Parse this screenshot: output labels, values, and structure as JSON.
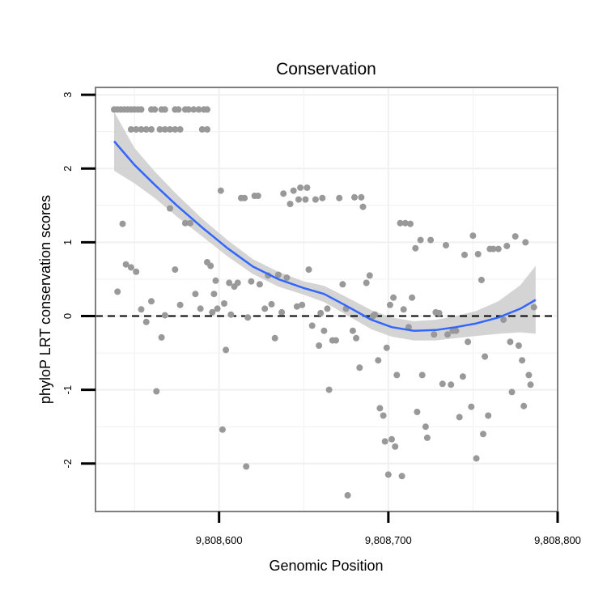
{
  "chart_data": {
    "type": "scatter",
    "title": "Conservation",
    "xlabel": "Genomic Position",
    "ylabel": "phyloP LRT conservation scores",
    "xlim": [
      9808527,
      9808800
    ],
    "ylim": [
      -2.65,
      3.1
    ],
    "x_ticks": [
      9808600,
      9808700,
      9808800
    ],
    "x_tick_labels": [
      "9,808,600",
      "9,808,700",
      "9,808,800"
    ],
    "y_ticks": [
      -2,
      -1,
      0,
      1,
      2,
      3
    ],
    "y_tick_labels": [
      "-2",
      "-1",
      "0",
      "1",
      "2",
      "3"
    ],
    "grid": true,
    "reference_line": {
      "y": 0,
      "style": "dashed",
      "color": "#000000"
    },
    "colors": {
      "points": "#999999",
      "smooth": "#3366ff",
      "band": "#cccccc",
      "grid": "#f0f0f0",
      "panel_border": "#7f7f7f"
    },
    "series": [
      {
        "type": "scatter",
        "points": [
          [
            9808538,
            2.8
          ],
          [
            9808540,
            2.8
          ],
          [
            9808542,
            2.8
          ],
          [
            9808544,
            2.8
          ],
          [
            9808546,
            2.8
          ],
          [
            9808548,
            2.8
          ],
          [
            9808550,
            2.8
          ],
          [
            9808552,
            2.8
          ],
          [
            9808554,
            2.8
          ],
          [
            9808548,
            2.53
          ],
          [
            9808551,
            2.53
          ],
          [
            9808554,
            2.53
          ],
          [
            9808557,
            2.53
          ],
          [
            9808560,
            2.53
          ],
          [
            9808560,
            2.8
          ],
          [
            9808562,
            2.8
          ],
          [
            9808566,
            2.8
          ],
          [
            9808568,
            2.8
          ],
          [
            9808574,
            2.8
          ],
          [
            9808576,
            2.8
          ],
          [
            9808580,
            2.8
          ],
          [
            9808582,
            2.8
          ],
          [
            9808585,
            2.8
          ],
          [
            9808588,
            2.8
          ],
          [
            9808591,
            2.8
          ],
          [
            9808593,
            2.8
          ],
          [
            9808565,
            2.53
          ],
          [
            9808568,
            2.53
          ],
          [
            9808571,
            2.53
          ],
          [
            9808574,
            2.53
          ],
          [
            9808577,
            2.53
          ],
          [
            9808590,
            2.53
          ],
          [
            9808593,
            2.53
          ],
          [
            9808540,
            0.33
          ],
          [
            9808543,
            1.25
          ],
          [
            9808545,
            0.7
          ],
          [
            9808548,
            0.66
          ],
          [
            9808551,
            0.6
          ],
          [
            9808554,
            0.09
          ],
          [
            9808557,
            -0.08
          ],
          [
            9808560,
            0.2
          ],
          [
            9808563,
            -1.02
          ],
          [
            9808566,
            -0.29
          ],
          [
            9808568,
            0.01
          ],
          [
            9808571,
            1.46
          ],
          [
            9808574,
            0.63
          ],
          [
            9808577,
            0.15
          ],
          [
            9808580,
            1.26
          ],
          [
            9808583,
            1.26
          ],
          [
            9808586,
            0.3
          ],
          [
            9808589,
            0.1
          ],
          [
            9808593,
            0.73
          ],
          [
            9808595,
            0.68
          ],
          [
            9808596,
            0.05
          ],
          [
            9808597,
            0.3
          ],
          [
            9808598,
            0.48
          ],
          [
            9808599,
            0.1
          ],
          [
            9808601,
            1.7
          ],
          [
            9808603,
            0.17
          ],
          [
            9808604,
            -0.46
          ],
          [
            9808606,
            0.45
          ],
          [
            9808607,
            0.02
          ],
          [
            9808609,
            0.4
          ],
          [
            9808611,
            0.45
          ],
          [
            9808613,
            1.6
          ],
          [
            9808615,
            1.6
          ],
          [
            9808617,
            -0.02
          ],
          [
            9808619,
            0.47
          ],
          [
            9808621,
            1.63
          ],
          [
            9808623,
            1.63
          ],
          [
            9808602,
            -1.54
          ],
          [
            9808616,
            -2.04
          ],
          [
            9808624,
            0.43
          ],
          [
            9808627,
            0.1
          ],
          [
            9808629,
            0.55
          ],
          [
            9808631,
            0.16
          ],
          [
            9808633,
            -0.3
          ],
          [
            9808635,
            0.56
          ],
          [
            9808637,
            0.05
          ],
          [
            9808638,
            1.66
          ],
          [
            9808640,
            0.52
          ],
          [
            9808642,
            1.52
          ],
          [
            9808644,
            1.7
          ],
          [
            9808646,
            0.13
          ],
          [
            9808647,
            1.58
          ],
          [
            9808648,
            1.74
          ],
          [
            9808649,
            0.15
          ],
          [
            9808651,
            1.58
          ],
          [
            9808652,
            1.74
          ],
          [
            9808653,
            0.63
          ],
          [
            9808655,
            -0.13
          ],
          [
            9808657,
            1.58
          ],
          [
            9808659,
            -0.4
          ],
          [
            9808660,
            0.04
          ],
          [
            9808661,
            1.6
          ],
          [
            9808662,
            -0.2
          ],
          [
            9808664,
            0.1
          ],
          [
            9808665,
            -1.0
          ],
          [
            9808667,
            -0.33
          ],
          [
            9808669,
            -0.33
          ],
          [
            9808671,
            1.6
          ],
          [
            9808673,
            0.43
          ],
          [
            9808675,
            0.1
          ],
          [
            9808676,
            -2.43
          ],
          [
            9808679,
            -0.2
          ],
          [
            9808680,
            1.61
          ],
          [
            9808681,
            -0.3
          ],
          [
            9808683,
            -0.7
          ],
          [
            9808684,
            1.61
          ],
          [
            9808685,
            1.48
          ],
          [
            9808687,
            0.45
          ],
          [
            9808689,
            0.55
          ],
          [
            9808691,
            0.0
          ],
          [
            9808692,
            0.02
          ],
          [
            9808694,
            -0.6
          ],
          [
            9808695,
            -1.25
          ],
          [
            9808697,
            -1.35
          ],
          [
            9808698,
            -1.7
          ],
          [
            9808699,
            -0.43
          ],
          [
            9808700,
            -2.15
          ],
          [
            9808701,
            0.15
          ],
          [
            9808702,
            -1.67
          ],
          [
            9808703,
            0.25
          ],
          [
            9808704,
            -1.77
          ],
          [
            9808705,
            -0.8
          ],
          [
            9808707,
            1.26
          ],
          [
            9808708,
            -2.17
          ],
          [
            9808709,
            0.09
          ],
          [
            9808710,
            1.26
          ],
          [
            9808712,
            -0.15
          ],
          [
            9808713,
            1.25
          ],
          [
            9808714,
            0.25
          ],
          [
            9808716,
            0.92
          ],
          [
            9808717,
            -1.3
          ],
          [
            9808719,
            1.03
          ],
          [
            9808720,
            -0.8
          ],
          [
            9808722,
            -1.5
          ],
          [
            9808723,
            -1.65
          ],
          [
            9808725,
            1.03
          ],
          [
            9808727,
            -0.25
          ],
          [
            9808728,
            0.05
          ],
          [
            9808730,
            0.04
          ],
          [
            9808732,
            -0.92
          ],
          [
            9808734,
            0.96
          ],
          [
            9808735,
            -0.25
          ],
          [
            9808737,
            -0.93
          ],
          [
            9808738,
            -0.2
          ],
          [
            9808740,
            -0.2
          ],
          [
            9808742,
            -1.37
          ],
          [
            9808744,
            -0.82
          ],
          [
            9808745,
            0.83
          ],
          [
            9808747,
            -0.35
          ],
          [
            9808749,
            -1.23
          ],
          [
            9808750,
            1.09
          ],
          [
            9808752,
            -1.93
          ],
          [
            9808753,
            0.84
          ],
          [
            9808755,
            0.49
          ],
          [
            9808756,
            -1.6
          ],
          [
            9808757,
            -0.55
          ],
          [
            9808759,
            -1.35
          ],
          [
            9808760,
            0.91
          ],
          [
            9808762,
            0.91
          ],
          [
            9808765,
            0.91
          ],
          [
            9808768,
            -0.05
          ],
          [
            9808770,
            0.95
          ],
          [
            9808772,
            -0.35
          ],
          [
            9808773,
            -1.03
          ],
          [
            9808775,
            1.08
          ],
          [
            9808777,
            -0.4
          ],
          [
            9808779,
            -0.6
          ],
          [
            9808780,
            -1.22
          ],
          [
            9808781,
            1.0
          ],
          [
            9808783,
            -0.8
          ],
          [
            9808784,
            -0.93
          ],
          [
            9808786,
            0.12
          ]
        ]
      },
      {
        "type": "line",
        "x": [
          9808538,
          9808550,
          9808562,
          9808575,
          9808590,
          9808605,
          9808620,
          9808635,
          9808650,
          9808662,
          9808675,
          9808690,
          9808702,
          9808715,
          9808728,
          9808740,
          9808752,
          9808765,
          9808778,
          9808787
        ],
        "y": [
          2.37,
          2.05,
          1.78,
          1.5,
          1.2,
          0.92,
          0.67,
          0.5,
          0.38,
          0.3,
          0.14,
          -0.05,
          -0.15,
          -0.2,
          -0.19,
          -0.15,
          -0.1,
          -0.02,
          0.1,
          0.22
        ],
        "band_upper": [
          2.77,
          2.28,
          1.96,
          1.65,
          1.32,
          1.03,
          0.77,
          0.6,
          0.47,
          0.41,
          0.26,
          0.08,
          -0.02,
          -0.07,
          -0.05,
          0.0,
          0.07,
          0.2,
          0.42,
          0.68
        ],
        "band_lower": [
          1.97,
          1.8,
          1.6,
          1.35,
          1.08,
          0.81,
          0.57,
          0.4,
          0.29,
          0.19,
          0.02,
          -0.18,
          -0.28,
          -0.33,
          -0.33,
          -0.3,
          -0.27,
          -0.24,
          -0.22,
          -0.24
        ]
      }
    ]
  }
}
